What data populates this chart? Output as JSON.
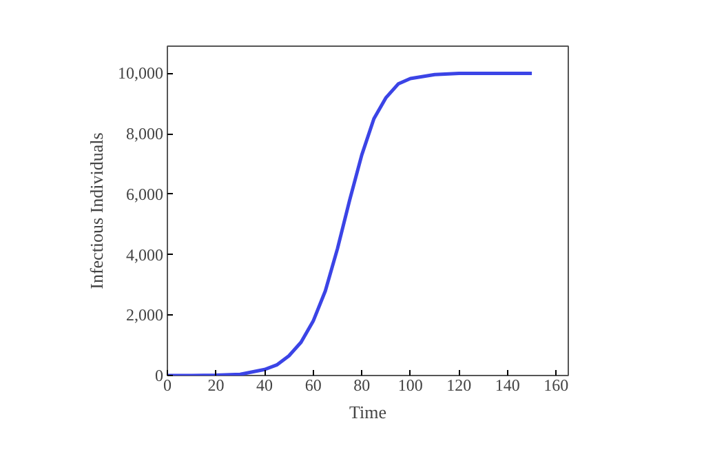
{
  "chart_data": {
    "type": "line",
    "xlabel": "Time",
    "ylabel": "Infectious Individuals",
    "x": [
      0,
      10,
      20,
      30,
      40,
      45,
      50,
      55,
      60,
      65,
      70,
      75,
      80,
      85,
      90,
      95,
      100,
      110,
      120,
      130,
      150
    ],
    "series": [
      {
        "color": "#3b44e6",
        "values": [
          0,
          0,
          10,
          40,
          200,
          350,
          650,
          1100,
          1800,
          2800,
          4200,
          5800,
          7300,
          8500,
          9200,
          9650,
          9830,
          9960,
          10000,
          10000,
          10000
        ]
      }
    ],
    "xlim": [
      0,
      165
    ],
    "ylim": [
      0,
      10900
    ],
    "xticks": [
      0,
      20,
      40,
      60,
      80,
      100,
      120,
      140,
      160
    ],
    "yticks": [
      0,
      {
        "value": 2000,
        "label": "2,000"
      },
      {
        "value": 4000,
        "label": "4,000"
      },
      {
        "value": 6000,
        "label": "6,000"
      },
      {
        "value": 8000,
        "label": "8,000"
      },
      {
        "value": 10000,
        "label": "10,000"
      }
    ],
    "grid": false
  }
}
